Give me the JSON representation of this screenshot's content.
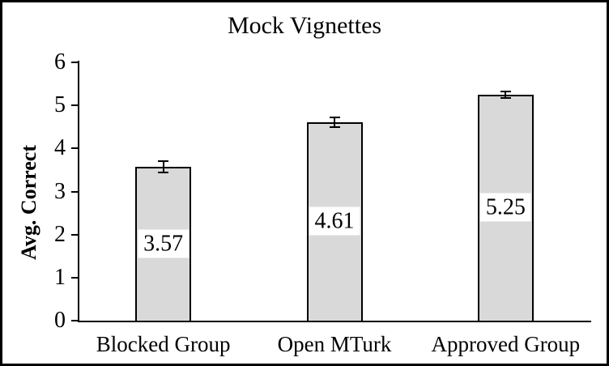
{
  "chart_data": {
    "type": "bar",
    "title": "Mock Vignettes",
    "xlabel": "",
    "ylabel": "Avg. Correct",
    "categories": [
      "Blocked Group",
      "Open MTurk",
      "Approved Group"
    ],
    "values": [
      3.57,
      4.61,
      5.25
    ],
    "value_labels": [
      "3.57",
      "4.61",
      "5.25"
    ],
    "errors": [
      0.15,
      0.13,
      0.09
    ],
    "ylim": [
      0,
      6
    ],
    "yticks": [
      "0",
      "1",
      "2",
      "3",
      "4",
      "5",
      "6"
    ],
    "grid": false,
    "legend_position": "none",
    "bar_fill_color": "#d9d9d9",
    "bar_border_color": "#000000",
    "frame_border_color": "#000000",
    "label_box_color": "#ffffff"
  }
}
